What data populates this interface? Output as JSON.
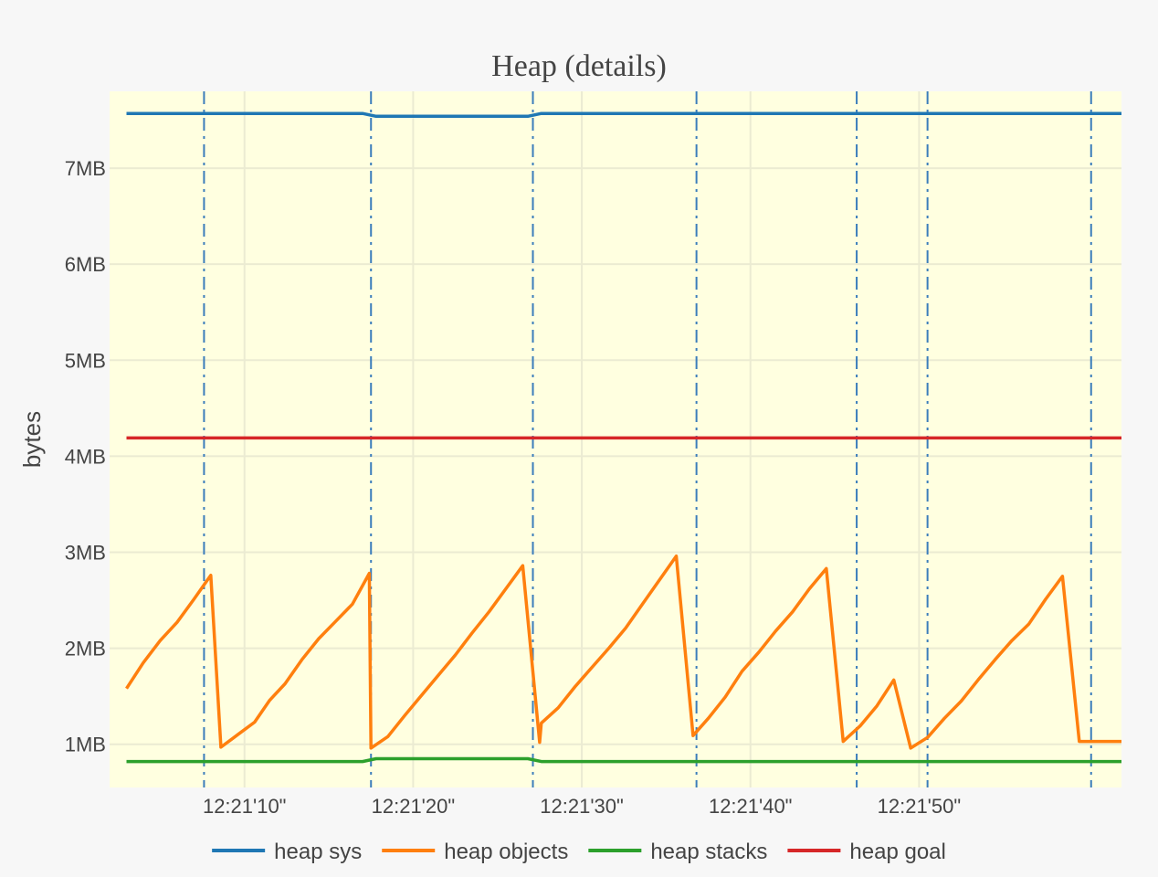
{
  "chart_data": {
    "type": "line",
    "title": "Heap (details)",
    "xlabel": "",
    "ylabel": "bytes",
    "x_range_seconds": [
      2.0,
      62.0
    ],
    "ylim_mb": [
      0.55,
      7.8
    ],
    "y_ticks": [
      {
        "value": 1,
        "label": "1MB"
      },
      {
        "value": 2,
        "label": "2MB"
      },
      {
        "value": 3,
        "label": "3MB"
      },
      {
        "value": 4,
        "label": "4MB"
      },
      {
        "value": 5,
        "label": "5MB"
      },
      {
        "value": 6,
        "label": "6MB"
      },
      {
        "value": 7,
        "label": "7MB"
      }
    ],
    "x_ticks": [
      {
        "value": 10,
        "label": "12:21'10\""
      },
      {
        "value": 20,
        "label": "12:21'20\""
      },
      {
        "value": 30,
        "label": "12:21'30\""
      },
      {
        "value": 40,
        "label": "12:21'40\""
      },
      {
        "value": 50,
        "label": "12:21'50\""
      }
    ],
    "gc_events_seconds": [
      7.6,
      17.5,
      27.1,
      36.8,
      46.3,
      50.5,
      60.2
    ],
    "plot_background": "#ffffe0",
    "series": [
      {
        "name": "heap sys",
        "color": "#1f77b4",
        "x": [
          3.0,
          17.0,
          17.8,
          26.8,
          27.6,
          62.0
        ],
        "y": [
          7.57,
          7.57,
          7.54,
          7.54,
          7.57,
          7.57
        ]
      },
      {
        "name": "heap objects",
        "color": "#ff7f0e",
        "x": [
          3.0,
          4.0,
          5.0,
          6.0,
          7.0,
          8.0,
          8.6,
          9.6,
          10.6,
          11.5,
          12.4,
          13.4,
          14.4,
          15.4,
          16.4,
          17.4,
          17.5,
          18.5,
          19.5,
          20.5,
          21.5,
          22.5,
          23.5,
          24.5,
          25.5,
          26.5,
          27.5,
          27.6,
          28.6,
          29.6,
          30.6,
          31.6,
          32.6,
          33.6,
          34.6,
          35.6,
          36.6,
          37.5,
          38.5,
          39.5,
          40.5,
          41.5,
          42.5,
          43.5,
          44.5,
          45.5,
          46.5,
          47.5,
          48.5,
          49.5,
          50.5,
          51.5,
          52.5,
          53.5,
          54.5,
          55.5,
          56.5,
          57.5,
          58.5,
          59.5,
          60.5,
          61.5,
          62.0
        ],
        "y": [
          1.58,
          1.85,
          2.08,
          2.27,
          2.51,
          2.76,
          0.97,
          1.1,
          1.23,
          1.46,
          1.63,
          1.88,
          2.1,
          2.28,
          2.46,
          2.78,
          0.96,
          1.08,
          1.3,
          1.51,
          1.72,
          1.93,
          2.16,
          2.38,
          2.62,
          2.86,
          1.02,
          1.22,
          1.38,
          1.6,
          1.8,
          2.0,
          2.21,
          2.46,
          2.71,
          2.96,
          1.09,
          1.27,
          1.49,
          1.76,
          1.96,
          2.18,
          2.38,
          2.62,
          2.83,
          1.03,
          1.19,
          1.4,
          1.67,
          0.96,
          1.07,
          1.27,
          1.45,
          1.67,
          1.88,
          2.08,
          2.25,
          2.51,
          2.75,
          1.03,
          1.03,
          1.03,
          1.03
        ]
      },
      {
        "name": "heap stacks",
        "color": "#2ca02c",
        "x": [
          3.0,
          17.0,
          17.8,
          26.8,
          27.6,
          62.0
        ],
        "y": [
          0.82,
          0.82,
          0.85,
          0.85,
          0.82,
          0.82
        ]
      },
      {
        "name": "heap goal",
        "color": "#d62728",
        "x": [
          3.0,
          62.0
        ],
        "y": [
          4.19,
          4.19
        ]
      }
    ]
  }
}
